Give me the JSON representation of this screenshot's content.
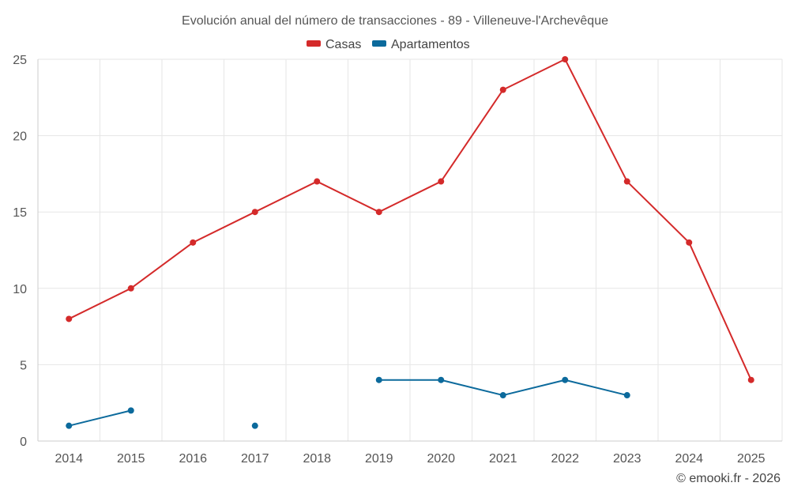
{
  "chart_data": {
    "type": "line",
    "title": "Evolución anual del número de transacciones - 89 - Villeneuve-l'Archevêque",
    "categories": [
      "2014",
      "2015",
      "2016",
      "2017",
      "2018",
      "2019",
      "2020",
      "2021",
      "2022",
      "2023",
      "2024",
      "2025"
    ],
    "series": [
      {
        "name": "Casas",
        "color": "#d42a2a",
        "values": [
          8,
          10,
          13,
          15,
          17,
          15,
          17,
          23,
          25,
          17,
          13,
          4
        ]
      },
      {
        "name": "Apartamentos",
        "color": "#0c6a9c",
        "values": [
          1,
          2,
          null,
          1,
          null,
          4,
          4,
          3,
          4,
          3,
          null,
          null
        ]
      }
    ],
    "ylim": [
      0,
      25
    ],
    "yticks": [
      0,
      5,
      10,
      15,
      20,
      25
    ],
    "xlabel": "",
    "ylabel": "",
    "grid": true,
    "legend": "top-center"
  },
  "credit": "© emooki.fr - 2026"
}
